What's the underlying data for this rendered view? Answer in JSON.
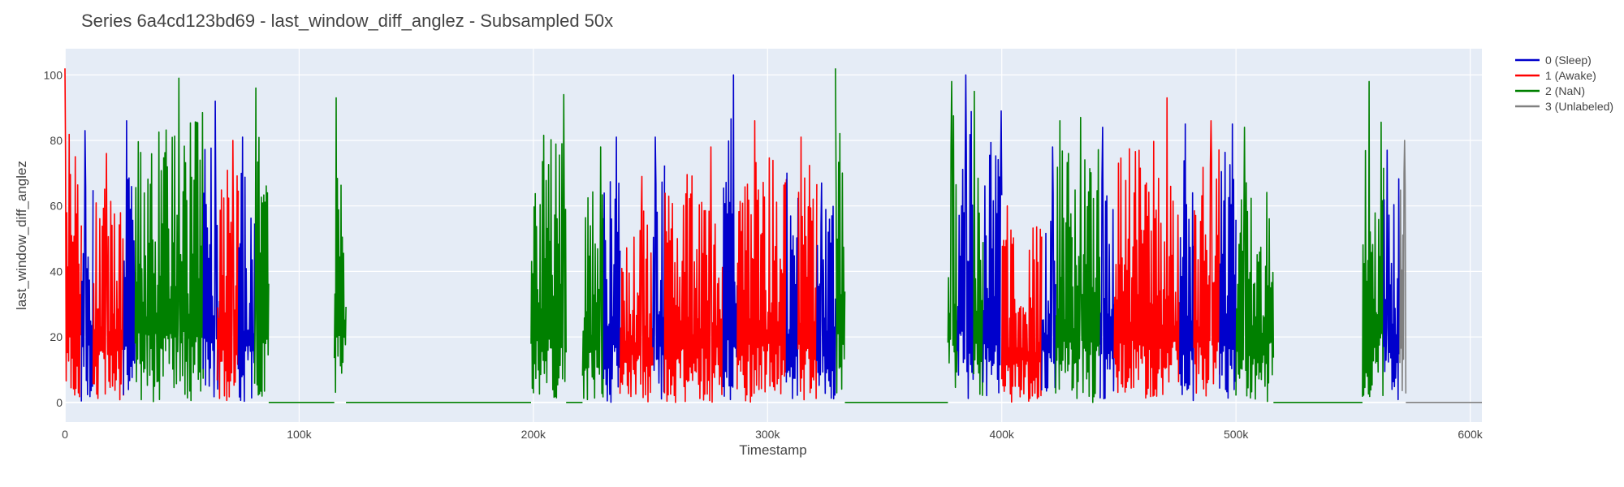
{
  "chart_data": {
    "type": "line",
    "title": "Series 6a4cd123bd69 - last_window_diff_anglez - Subsampled 50x",
    "xlabel": "Timestamp",
    "ylabel": "last_window_diff_anglez",
    "xlim": [
      0,
      605000
    ],
    "ylim": [
      -6,
      108
    ],
    "x_ticks": [
      0,
      100000,
      200000,
      300000,
      400000,
      500000,
      600000
    ],
    "x_tick_labels": [
      "0",
      "100k",
      "200k",
      "300k",
      "400k",
      "500k",
      "600k"
    ],
    "y_ticks": [
      0,
      20,
      40,
      60,
      80,
      100
    ],
    "y_tick_labels": [
      "0",
      "20",
      "40",
      "60",
      "80",
      "100"
    ],
    "grid": true,
    "legend_position": "top-right",
    "series": [
      {
        "name": "0 (Sleep)",
        "color": "#0000cc",
        "segments": [
          [
            7000,
            12000
          ],
          [
            25000,
            30000
          ],
          [
            59000,
            66000
          ],
          [
            74000,
            81000
          ],
          [
            230000,
            237000
          ],
          [
            251000,
            256000
          ],
          [
            281000,
            287000
          ],
          [
            308000,
            313000
          ],
          [
            321000,
            329000
          ],
          [
            381000,
            388000
          ],
          [
            392000,
            400000
          ],
          [
            417000,
            423000
          ],
          [
            442000,
            448000
          ],
          [
            476000,
            482000
          ],
          [
            493000,
            500000
          ],
          [
            563000,
            570000
          ]
        ],
        "peaks": [
          83,
          86,
          92,
          81,
          81,
          81,
          100,
          70,
          67,
          100,
          89,
          78,
          84,
          85,
          85,
          77
        ]
      },
      {
        "name": "1 (Awake)",
        "color": "#ff0000",
        "segments": [
          [
            0,
            7000
          ],
          [
            12000,
            25000
          ],
          [
            65000,
            74000
          ],
          [
            237000,
            251000
          ],
          [
            256000,
            281000
          ],
          [
            287000,
            308000
          ],
          [
            313000,
            321000
          ],
          [
            400000,
            417000
          ],
          [
            448000,
            476000
          ],
          [
            482000,
            493000
          ]
        ],
        "peaks": [
          102,
          76,
          80,
          69,
          78,
          86,
          81,
          60,
          93,
          86
        ]
      },
      {
        "name": "2 (NaN)",
        "color": "#008000",
        "segments": [
          [
            30000,
            59000
          ],
          [
            81000,
            87000
          ],
          [
            87000,
            115000
          ],
          [
            115000,
            120000
          ],
          [
            120000,
            199000
          ],
          [
            199000,
            214000
          ],
          [
            214000,
            221000
          ],
          [
            221000,
            230000
          ],
          [
            329000,
            333000
          ],
          [
            333000,
            377000
          ],
          [
            377000,
            381000
          ],
          [
            388000,
            392000
          ],
          [
            423000,
            430000
          ],
          [
            430000,
            442000
          ],
          [
            500000,
            516000
          ],
          [
            516000,
            554000
          ],
          [
            554000,
            563000
          ]
        ],
        "peaks": [
          99,
          96,
          0,
          93,
          0,
          94,
          0,
          78,
          102,
          0,
          98,
          95,
          86,
          87,
          84,
          0,
          98
        ]
      },
      {
        "name": "3 (Unlabeled)",
        "color": "#808080",
        "segments": [
          [
            570000,
            572500
          ],
          [
            572500,
            605000
          ]
        ],
        "peaks": [
          80,
          0
        ]
      }
    ]
  }
}
